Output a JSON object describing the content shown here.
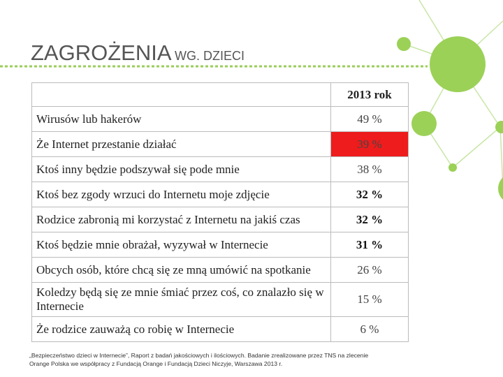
{
  "header": {
    "title": "ZAGROŻENIA",
    "subtitle": "WG. DZIECI"
  },
  "table": {
    "header": [
      "",
      "2013 rok"
    ],
    "rows": [
      [
        "Wirusów lub hakerów",
        "49 %"
      ],
      [
        "Że Internet przestanie działać",
        "39 %"
      ],
      [
        "Ktoś inny będzie podszywał się pode mnie",
        "38 %"
      ],
      [
        "Ktoś bez zgody wrzuci do Internetu moje zdjęcie",
        "32 %"
      ],
      [
        "Rodzice zabronią mi korzystać z Internetu na jakiś czas",
        "32 %"
      ],
      [
        "Ktoś będzie mnie obrażał, wyzywał w Internecie",
        "31 %"
      ],
      [
        "Obcych osób, które chcą się ze mną umówić na spotkanie",
        "26 %"
      ],
      [
        "Koledzy będą się ze mnie śmiać przez coś, co znalazło się w Internecie",
        "15 %"
      ],
      [
        "Że rodzice zauważą co robię w Internecie",
        "6 %"
      ]
    ]
  },
  "source": [
    "„Bezpieczeństwo dzieci w Internecie”, Raport z badań jakościowych i ilościowych. Badanie zrealizowane przez TNS na zlecenie",
    "Orange Polska we współpracy z Fundacją Orange i Fundacją Dzieci Niczyje, Warszawa 2013 r."
  ]
}
